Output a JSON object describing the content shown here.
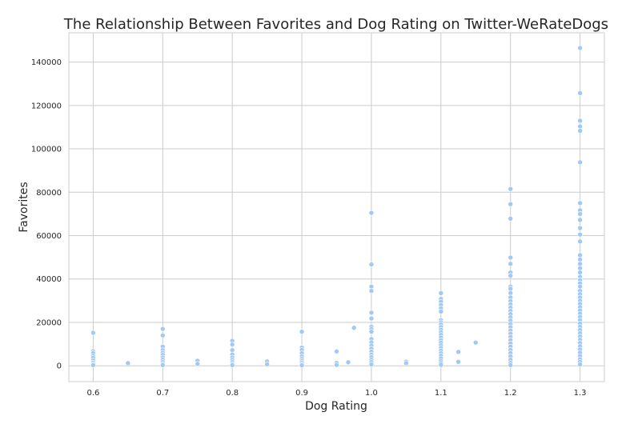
{
  "chart_data": {
    "type": "scatter",
    "title": "The Relationship Between Favorites and Dog Rating on Twitter-WeRateDogs",
    "xlabel": "Dog Rating",
    "ylabel": "Favorites",
    "xlim": [
      0.565,
      1.335
    ],
    "ylim": [
      -7300,
      153500
    ],
    "xticks": [
      0.6,
      0.7,
      0.8,
      0.9,
      1.0,
      1.1,
      1.2,
      1.3
    ],
    "xtick_labels": [
      "0.6",
      "0.7",
      "0.8",
      "0.9",
      "1.0",
      "1.1",
      "1.2",
      "1.3"
    ],
    "yticks": [
      0,
      20000,
      40000,
      60000,
      80000,
      100000,
      120000,
      140000
    ],
    "ytick_labels": [
      "0",
      "20000",
      "40000",
      "60000",
      "80000",
      "100000",
      "120000",
      "140000"
    ],
    "grid": true,
    "marker_color": "#a1c9f4",
    "points": [
      [
        0.6,
        15200
      ],
      [
        0.6,
        6700
      ],
      [
        0.6,
        5800
      ],
      [
        0.6,
        4500
      ],
      [
        0.6,
        3600
      ],
      [
        0.6,
        2400
      ],
      [
        0.6,
        1500
      ],
      [
        0.6,
        800
      ],
      [
        0.6,
        300
      ],
      [
        0.65,
        1200
      ],
      [
        0.7,
        17000
      ],
      [
        0.7,
        14000
      ],
      [
        0.7,
        8800
      ],
      [
        0.7,
        7200
      ],
      [
        0.7,
        6000
      ],
      [
        0.7,
        5000
      ],
      [
        0.7,
        3800
      ],
      [
        0.7,
        2800
      ],
      [
        0.7,
        1800
      ],
      [
        0.7,
        900
      ],
      [
        0.7,
        300
      ],
      [
        0.75,
        2300
      ],
      [
        0.75,
        900
      ],
      [
        0.8,
        11500
      ],
      [
        0.8,
        9800
      ],
      [
        0.8,
        7200
      ],
      [
        0.8,
        5200
      ],
      [
        0.8,
        3800
      ],
      [
        0.8,
        2700
      ],
      [
        0.8,
        1700
      ],
      [
        0.8,
        900
      ],
      [
        0.8,
        300
      ],
      [
        0.85,
        2000
      ],
      [
        0.85,
        700
      ],
      [
        0.9,
        15700
      ],
      [
        0.9,
        8400
      ],
      [
        0.9,
        7300
      ],
      [
        0.9,
        5800
      ],
      [
        0.9,
        4300
      ],
      [
        0.9,
        3200
      ],
      [
        0.9,
        2300
      ],
      [
        0.9,
        1500
      ],
      [
        0.9,
        700
      ],
      [
        0.9,
        200
      ],
      [
        0.95,
        6600
      ],
      [
        0.95,
        1300
      ],
      [
        0.95,
        400
      ],
      [
        0.9667,
        1600
      ],
      [
        0.975,
        17500
      ],
      [
        1.0,
        70500
      ],
      [
        1.0,
        46700
      ],
      [
        1.0,
        36500
      ],
      [
        1.0,
        34500
      ],
      [
        1.0,
        24500
      ],
      [
        1.0,
        21800
      ],
      [
        1.0,
        18000
      ],
      [
        1.0,
        16900
      ],
      [
        1.0,
        15700
      ],
      [
        1.0,
        12300
      ],
      [
        1.0,
        10800
      ],
      [
        1.0,
        9300
      ],
      [
        1.0,
        7900
      ],
      [
        1.0,
        6500
      ],
      [
        1.0,
        5200
      ],
      [
        1.0,
        4000
      ],
      [
        1.0,
        2800
      ],
      [
        1.0,
        1700
      ],
      [
        1.0,
        600
      ],
      [
        1.05,
        1900
      ],
      [
        1.05,
        1200
      ],
      [
        1.1,
        33500
      ],
      [
        1.1,
        30800
      ],
      [
        1.1,
        29500
      ],
      [
        1.1,
        28000
      ],
      [
        1.1,
        26500
      ],
      [
        1.1,
        25000
      ],
      [
        1.1,
        21000
      ],
      [
        1.1,
        20000
      ],
      [
        1.1,
        19000
      ],
      [
        1.1,
        17800
      ],
      [
        1.1,
        16600
      ],
      [
        1.1,
        15400
      ],
      [
        1.1,
        14200
      ],
      [
        1.1,
        13000
      ],
      [
        1.1,
        11800
      ],
      [
        1.1,
        10600
      ],
      [
        1.1,
        9400
      ],
      [
        1.1,
        8200
      ],
      [
        1.1,
        7000
      ],
      [
        1.1,
        5800
      ],
      [
        1.1,
        4600
      ],
      [
        1.1,
        3400
      ],
      [
        1.1,
        2200
      ],
      [
        1.1,
        1200
      ],
      [
        1.1,
        400
      ],
      [
        1.125,
        6400
      ],
      [
        1.125,
        1800
      ],
      [
        1.15,
        10700
      ],
      [
        1.2,
        81500
      ],
      [
        1.2,
        74500
      ],
      [
        1.2,
        67800
      ],
      [
        1.2,
        49900
      ],
      [
        1.2,
        47000
      ],
      [
        1.2,
        43000
      ],
      [
        1.2,
        41500
      ],
      [
        1.2,
        36500
      ],
      [
        1.2,
        35500
      ],
      [
        1.2,
        33500
      ],
      [
        1.2,
        31500
      ],
      [
        1.2,
        29800
      ],
      [
        1.2,
        28300
      ],
      [
        1.2,
        26800
      ],
      [
        1.2,
        25300
      ],
      [
        1.2,
        23800
      ],
      [
        1.2,
        22300
      ],
      [
        1.2,
        20800
      ],
      [
        1.2,
        19300
      ],
      [
        1.2,
        17800
      ],
      [
        1.2,
        16300
      ],
      [
        1.2,
        14800
      ],
      [
        1.2,
        13300
      ],
      [
        1.2,
        11800
      ],
      [
        1.2,
        10300
      ],
      [
        1.2,
        8800
      ],
      [
        1.2,
        7300
      ],
      [
        1.2,
        5800
      ],
      [
        1.2,
        4300
      ],
      [
        1.2,
        2800
      ],
      [
        1.2,
        1300
      ],
      [
        1.2,
        300
      ],
      [
        1.3,
        146500
      ],
      [
        1.3,
        125700
      ],
      [
        1.3,
        113000
      ],
      [
        1.3,
        110300
      ],
      [
        1.3,
        108300
      ],
      [
        1.3,
        93800
      ],
      [
        1.3,
        75000
      ],
      [
        1.3,
        71700
      ],
      [
        1.3,
        70000
      ],
      [
        1.3,
        67200
      ],
      [
        1.3,
        63500
      ],
      [
        1.3,
        60500
      ],
      [
        1.3,
        57300
      ],
      [
        1.3,
        51000
      ],
      [
        1.3,
        49000
      ],
      [
        1.3,
        47000
      ],
      [
        1.3,
        45000
      ],
      [
        1.3,
        43000
      ],
      [
        1.3,
        41000
      ],
      [
        1.3,
        39500
      ],
      [
        1.3,
        38000
      ],
      [
        1.3,
        36500
      ],
      [
        1.3,
        34500
      ],
      [
        1.3,
        33000
      ],
      [
        1.3,
        31500
      ],
      [
        1.3,
        30000
      ],
      [
        1.3,
        28500
      ],
      [
        1.3,
        27000
      ],
      [
        1.3,
        25500
      ],
      [
        1.3,
        24000
      ],
      [
        1.3,
        22500
      ],
      [
        1.3,
        21000
      ],
      [
        1.3,
        19500
      ],
      [
        1.3,
        18000
      ],
      [
        1.3,
        16500
      ],
      [
        1.3,
        15000
      ],
      [
        1.3,
        13500
      ],
      [
        1.3,
        12000
      ],
      [
        1.3,
        10500
      ],
      [
        1.3,
        9000
      ],
      [
        1.3,
        7500
      ],
      [
        1.3,
        6000
      ],
      [
        1.3,
        4500
      ],
      [
        1.3,
        3000
      ],
      [
        1.3,
        1800
      ],
      [
        1.3,
        600
      ]
    ]
  }
}
